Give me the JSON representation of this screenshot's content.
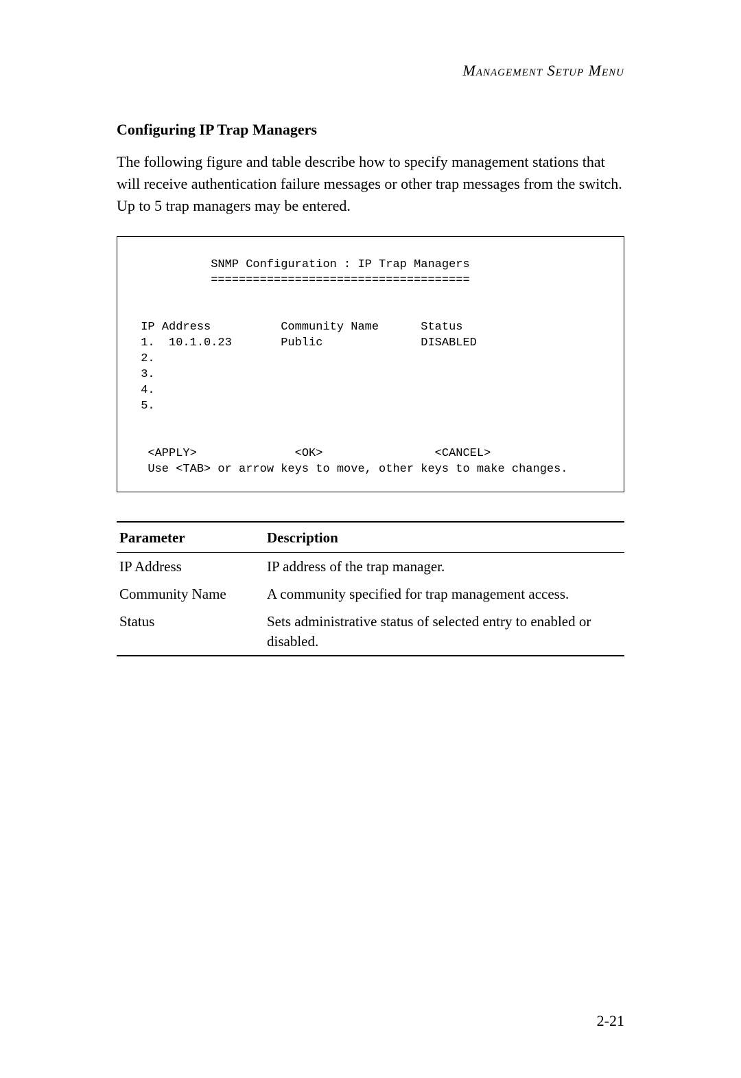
{
  "page": {
    "header": "Management Setup Menu",
    "page_number": "2-21"
  },
  "section": {
    "heading": "Configuring IP Trap Managers",
    "body": "The following figure and table describe how to specify management stations that will receive authentication failure messages or other trap messages from the switch. Up to 5 trap managers may be entered."
  },
  "terminal": {
    "title": "           SNMP Configuration : IP Trap Managers",
    "separator": "           =====================================",
    "header_row": " IP Address          Community Name      Status",
    "rows": [
      " 1.  10.1.0.23       Public              DISABLED",
      " 2.",
      " 3.",
      " 4.",
      " 5."
    ],
    "buttons_row": "  <APPLY>              <OK>                <CANCEL>",
    "hint": "  Use <TAB> or arrow keys to move, other keys to make changes."
  },
  "table": {
    "columns": [
      "Parameter",
      "Description"
    ],
    "rows": [
      [
        "IP Address",
        "IP address of the trap manager."
      ],
      [
        "Community Name",
        "A community specified for trap management access."
      ],
      [
        "Status",
        "Sets administrative status of selected entry to enabled or disabled."
      ]
    ]
  }
}
